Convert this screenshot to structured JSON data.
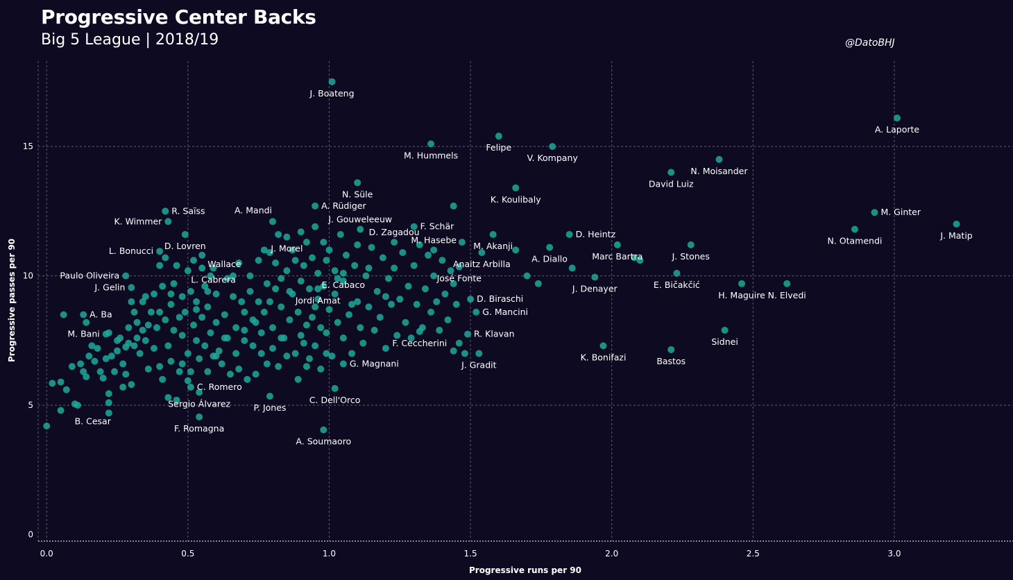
{
  "chart_data": {
    "type": "scatter",
    "title": "Progressive Center Backs",
    "subtitle": "Big 5 League | 2018/19",
    "credit": "@DatoBHJ",
    "xlabel": "Progressive runs per 90",
    "ylabel": "Progressive passes per 90",
    "xlim": [
      -0.03,
      3.42
    ],
    "ylim": [
      -0.25,
      18.3
    ],
    "xticks": [
      0.0,
      0.5,
      1.0,
      1.5,
      2.0,
      2.5,
      3.0
    ],
    "xtick_labels": [
      "0.0",
      "0.5",
      "1.0",
      "1.5",
      "2.0",
      "2.5",
      "3.0"
    ],
    "yticks": [
      0,
      5,
      10,
      15
    ],
    "ytick_labels": [
      "0",
      "5",
      "10",
      "15"
    ],
    "grid": true,
    "colors": {
      "background": "#0d0a22",
      "point": "#1fa898",
      "text": "#ffffff",
      "grid": "#9a97a8"
    },
    "labeled_points": [
      {
        "name": "J. Boateng",
        "x": 1.01,
        "y": 17.5,
        "label_pos": "below"
      },
      {
        "name": "A. Laporte",
        "x": 3.01,
        "y": 16.1,
        "label_pos": "below"
      },
      {
        "name": "M. Hummels",
        "x": 1.36,
        "y": 15.1,
        "label_pos": "below"
      },
      {
        "name": "Felipe",
        "x": 1.6,
        "y": 15.4,
        "label_pos": "below"
      },
      {
        "name": "V. Kompany",
        "x": 1.79,
        "y": 15.0,
        "label_pos": "below"
      },
      {
        "name": "N. Moisander",
        "x": 2.38,
        "y": 14.5,
        "label_pos": "below"
      },
      {
        "name": "David Luiz",
        "x": 2.21,
        "y": 14.0,
        "label_pos": "below"
      },
      {
        "name": "N. Süle",
        "x": 1.1,
        "y": 13.6,
        "label_pos": "below"
      },
      {
        "name": "K. Koulibaly",
        "x": 1.66,
        "y": 13.4,
        "label_pos": "below"
      },
      {
        "name": "A. Rüdiger",
        "x": 0.95,
        "y": 12.7,
        "label_pos": "right"
      },
      {
        "name": "R. Saïss",
        "x": 0.42,
        "y": 12.5,
        "label_pos": "right"
      },
      {
        "name": "M. Ginter",
        "x": 2.93,
        "y": 12.45,
        "label_pos": "right"
      },
      {
        "name": "A. Mandi",
        "x": 0.8,
        "y": 12.1,
        "label_pos": "above-left"
      },
      {
        "name": "J. Gouweleeuw",
        "x": 1.11,
        "y": 11.8,
        "label_pos": "above"
      },
      {
        "name": "K. Wimmer",
        "x": 0.43,
        "y": 12.1,
        "label_pos": "left"
      },
      {
        "name": "J. Matip",
        "x": 3.22,
        "y": 12.0,
        "label_pos": "below"
      },
      {
        "name": "F. Schär",
        "x": 1.3,
        "y": 11.9,
        "label_pos": "right"
      },
      {
        "name": "N. Otamendi",
        "x": 2.86,
        "y": 11.8,
        "label_pos": "below"
      },
      {
        "name": "D. Heintz",
        "x": 1.85,
        "y": 11.6,
        "label_pos": "right"
      },
      {
        "name": "D. Lovren",
        "x": 0.49,
        "y": 11.6,
        "label_pos": "below"
      },
      {
        "name": "J. Morel",
        "x": 0.85,
        "y": 11.5,
        "label_pos": "below"
      },
      {
        "name": "D. Zagadou",
        "x": 1.23,
        "y": 11.3,
        "label_pos": "above"
      },
      {
        "name": "M. Hasebe",
        "x": 1.37,
        "y": 11.0,
        "label_pos": "above"
      },
      {
        "name": "M. Akanji",
        "x": 1.58,
        "y": 11.6,
        "label_pos": "below"
      },
      {
        "name": "L. Bonucci",
        "x": 0.4,
        "y": 10.95,
        "label_pos": "left"
      },
      {
        "name": "Wallace",
        "x": 0.55,
        "y": 10.8,
        "label_pos": "right-below"
      },
      {
        "name": "A. Diallo",
        "x": 1.78,
        "y": 11.1,
        "label_pos": "below"
      },
      {
        "name": "Marc Bartra",
        "x": 2.02,
        "y": 11.2,
        "label_pos": "below"
      },
      {
        "name": "J. Stones",
        "x": 2.28,
        "y": 11.2,
        "label_pos": "below"
      },
      {
        "name": "Anaitz Arbilla",
        "x": 1.54,
        "y": 10.9,
        "label_pos": "below"
      },
      {
        "name": "Paulo Oliveira",
        "x": 0.28,
        "y": 10.0,
        "label_pos": "left"
      },
      {
        "name": "L. Cabrera",
        "x": 0.59,
        "y": 10.3,
        "label_pos": "below"
      },
      {
        "name": "José Fonte",
        "x": 1.46,
        "y": 10.35,
        "label_pos": "below"
      },
      {
        "name": "E. Cabaco",
        "x": 1.05,
        "y": 10.1,
        "label_pos": "below"
      },
      {
        "name": "J. Denayer",
        "x": 1.94,
        "y": 9.95,
        "label_pos": "below"
      },
      {
        "name": "E. Bičakčić",
        "x": 2.23,
        "y": 10.1,
        "label_pos": "below"
      },
      {
        "name": "J. Gelin",
        "x": 0.3,
        "y": 9.55,
        "label_pos": "left"
      },
      {
        "name": "Jordi Amat",
        "x": 0.96,
        "y": 9.5,
        "label_pos": "below"
      },
      {
        "name": "H. Maguire",
        "x": 2.46,
        "y": 9.7,
        "label_pos": "below"
      },
      {
        "name": "N. Elvedi",
        "x": 2.62,
        "y": 9.7,
        "label_pos": "below"
      },
      {
        "name": "D. Biraschi",
        "x": 1.5,
        "y": 9.1,
        "label_pos": "right"
      },
      {
        "name": "G. Mancini",
        "x": 1.52,
        "y": 8.6,
        "label_pos": "right"
      },
      {
        "name": "A. Ba",
        "x": 0.13,
        "y": 8.5,
        "label_pos": "right"
      },
      {
        "name": "Sidnei",
        "x": 2.4,
        "y": 7.9,
        "label_pos": "below"
      },
      {
        "name": "M. Bani",
        "x": 0.21,
        "y": 7.75,
        "label_pos": "left"
      },
      {
        "name": "R. Klavan",
        "x": 1.49,
        "y": 7.75,
        "label_pos": "right"
      },
      {
        "name": "F. Ceccherini",
        "x": 1.32,
        "y": 7.85,
        "label_pos": "below"
      },
      {
        "name": "K. Bonifazi",
        "x": 1.97,
        "y": 7.3,
        "label_pos": "below"
      },
      {
        "name": "Bastos",
        "x": 2.21,
        "y": 7.15,
        "label_pos": "below"
      },
      {
        "name": "J. Gradit",
        "x": 1.53,
        "y": 7.0,
        "label_pos": "below"
      },
      {
        "name": "G. Magnani",
        "x": 1.05,
        "y": 6.6,
        "label_pos": "right"
      },
      {
        "name": "C. Romero",
        "x": 0.51,
        "y": 5.7,
        "label_pos": "right"
      },
      {
        "name": "C. Dell'Orco",
        "x": 1.02,
        "y": 5.65,
        "label_pos": "below"
      },
      {
        "name": "Sergio Álvarez",
        "x": 0.54,
        "y": 5.5,
        "label_pos": "below"
      },
      {
        "name": "P. Jones",
        "x": 0.79,
        "y": 5.35,
        "label_pos": "below"
      },
      {
        "name": "B. Cesar",
        "x": 0.05,
        "y": 4.8,
        "label_pos": "below-right"
      },
      {
        "name": "F. Romagna",
        "x": 0.54,
        "y": 4.55,
        "label_pos": "below"
      },
      {
        "name": "A. Soumaoro",
        "x": 0.98,
        "y": 4.05,
        "label_pos": "below"
      }
    ],
    "points": [
      [
        0.0,
        4.2
      ],
      [
        0.02,
        5.85
      ],
      [
        0.05,
        5.9
      ],
      [
        0.07,
        5.6
      ],
      [
        0.09,
        6.5
      ],
      [
        0.1,
        5.05
      ],
      [
        0.11,
        5.0
      ],
      [
        0.12,
        6.6
      ],
      [
        0.13,
        6.3
      ],
      [
        0.14,
        6.1
      ],
      [
        0.15,
        6.9
      ],
      [
        0.16,
        7.3
      ],
      [
        0.17,
        6.7
      ],
      [
        0.18,
        7.2
      ],
      [
        0.19,
        6.3
      ],
      [
        0.2,
        6.05
      ],
      [
        0.21,
        6.8
      ],
      [
        0.22,
        5.45
      ],
      [
        0.22,
        5.1
      ],
      [
        0.22,
        4.7
      ],
      [
        0.23,
        6.9
      ],
      [
        0.24,
        6.3
      ],
      [
        0.25,
        7.1
      ],
      [
        0.26,
        7.6
      ],
      [
        0.27,
        6.6
      ],
      [
        0.27,
        5.7
      ],
      [
        0.28,
        6.2
      ],
      [
        0.28,
        7.25
      ],
      [
        0.29,
        7.4
      ],
      [
        0.29,
        8.0
      ],
      [
        0.3,
        5.8
      ],
      [
        0.31,
        8.6
      ],
      [
        0.31,
        7.3
      ],
      [
        0.32,
        8.2
      ],
      [
        0.33,
        7.0
      ],
      [
        0.34,
        9.0
      ],
      [
        0.34,
        7.9
      ],
      [
        0.35,
        7.5
      ],
      [
        0.36,
        8.1
      ],
      [
        0.36,
        6.4
      ],
      [
        0.37,
        8.6
      ],
      [
        0.38,
        9.3
      ],
      [
        0.38,
        7.2
      ],
      [
        0.39,
        8.0
      ],
      [
        0.4,
        6.5
      ],
      [
        0.4,
        8.6
      ],
      [
        0.41,
        9.6
      ],
      [
        0.41,
        6.0
      ],
      [
        0.42,
        8.3
      ],
      [
        0.42,
        10.7
      ],
      [
        0.43,
        7.3
      ],
      [
        0.43,
        5.3
      ],
      [
        0.44,
        8.9
      ],
      [
        0.44,
        6.7
      ],
      [
        0.45,
        9.7
      ],
      [
        0.45,
        7.9
      ],
      [
        0.46,
        10.4
      ],
      [
        0.46,
        5.2
      ],
      [
        0.47,
        8.4
      ],
      [
        0.47,
        6.3
      ],
      [
        0.48,
        9.2
      ],
      [
        0.48,
        7.7
      ],
      [
        0.49,
        8.6
      ],
      [
        0.5,
        10.2
      ],
      [
        0.5,
        7.0
      ],
      [
        0.5,
        5.95
      ],
      [
        0.51,
        9.4
      ],
      [
        0.51,
        6.3
      ],
      [
        0.52,
        8.1
      ],
      [
        0.52,
        10.6
      ],
      [
        0.53,
        7.5
      ],
      [
        0.53,
        9.0
      ],
      [
        0.54,
        6.8
      ],
      [
        0.55,
        8.4
      ],
      [
        0.55,
        10.3
      ],
      [
        0.56,
        7.3
      ],
      [
        0.56,
        9.6
      ],
      [
        0.57,
        6.3
      ],
      [
        0.57,
        8.8
      ],
      [
        0.58,
        7.8
      ],
      [
        0.58,
        10.0
      ],
      [
        0.59,
        6.9
      ],
      [
        0.6,
        8.2
      ],
      [
        0.6,
        9.3
      ],
      [
        0.61,
        7.1
      ],
      [
        0.62,
        6.6
      ],
      [
        0.63,
        8.5
      ],
      [
        0.64,
        9.9
      ],
      [
        0.64,
        7.6
      ],
      [
        0.65,
        6.2
      ],
      [
        0.66,
        9.2
      ],
      [
        0.67,
        7.0
      ],
      [
        0.67,
        8.0
      ],
      [
        0.68,
        10.5
      ],
      [
        0.68,
        6.4
      ],
      [
        0.69,
        9.0
      ],
      [
        0.7,
        7.5
      ],
      [
        0.7,
        8.6
      ],
      [
        0.71,
        6.0
      ],
      [
        0.72,
        10.0
      ],
      [
        0.72,
        9.4
      ],
      [
        0.73,
        7.3
      ],
      [
        0.73,
        8.3
      ],
      [
        0.74,
        6.2
      ],
      [
        0.75,
        10.6
      ],
      [
        0.75,
        9.0
      ],
      [
        0.76,
        7.8
      ],
      [
        0.77,
        8.6
      ],
      [
        0.77,
        11.0
      ],
      [
        0.78,
        6.6
      ],
      [
        0.78,
        9.7
      ],
      [
        0.79,
        10.9
      ],
      [
        0.8,
        8.0
      ],
      [
        0.8,
        7.2
      ],
      [
        0.81,
        9.5
      ],
      [
        0.81,
        10.5
      ],
      [
        0.82,
        6.5
      ],
      [
        0.82,
        11.6
      ],
      [
        0.83,
        8.8
      ],
      [
        0.83,
        9.9
      ],
      [
        0.84,
        7.6
      ],
      [
        0.85,
        10.2
      ],
      [
        0.85,
        6.9
      ],
      [
        0.86,
        8.3
      ],
      [
        0.87,
        11.0
      ],
      [
        0.87,
        9.3
      ],
      [
        0.88,
        7.0
      ],
      [
        0.88,
        10.6
      ],
      [
        0.89,
        6.0
      ],
      [
        0.89,
        8.6
      ],
      [
        0.9,
        11.7
      ],
      [
        0.9,
        9.8
      ],
      [
        0.91,
        7.4
      ],
      [
        0.91,
        10.4
      ],
      [
        0.92,
        8.1
      ],
      [
        0.92,
        11.3
      ],
      [
        0.93,
        9.5
      ],
      [
        0.93,
        6.8
      ],
      [
        0.94,
        10.7
      ],
      [
        0.94,
        8.4
      ],
      [
        0.95,
        7.3
      ],
      [
        0.95,
        11.9
      ],
      [
        0.96,
        9.1
      ],
      [
        0.96,
        10.1
      ],
      [
        0.97,
        6.4
      ],
      [
        0.97,
        8.0
      ],
      [
        0.98,
        11.3
      ],
      [
        0.98,
        9.6
      ],
      [
        0.99,
        7.8
      ],
      [
        0.99,
        10.6
      ],
      [
        1.0,
        8.7
      ],
      [
        1.0,
        11.0
      ],
      [
        1.01,
        6.9
      ],
      [
        1.02,
        9.3
      ],
      [
        1.02,
        10.2
      ],
      [
        1.03,
        8.2
      ],
      [
        1.04,
        11.6
      ],
      [
        1.05,
        7.6
      ],
      [
        1.05,
        9.8
      ],
      [
        1.06,
        10.8
      ],
      [
        1.07,
        8.5
      ],
      [
        1.08,
        7.0
      ],
      [
        1.09,
        10.4
      ],
      [
        1.1,
        9.0
      ],
      [
        1.1,
        11.2
      ],
      [
        1.11,
        8.0
      ],
      [
        1.12,
        7.4
      ],
      [
        1.13,
        10.0
      ],
      [
        1.14,
        8.8
      ],
      [
        1.15,
        11.1
      ],
      [
        1.16,
        7.9
      ],
      [
        1.17,
        9.4
      ],
      [
        1.18,
        8.4
      ],
      [
        1.19,
        10.7
      ],
      [
        1.2,
        7.2
      ],
      [
        1.21,
        9.9
      ],
      [
        1.22,
        8.9
      ],
      [
        1.23,
        10.3
      ],
      [
        1.24,
        7.7
      ],
      [
        1.25,
        9.1
      ],
      [
        1.26,
        10.9
      ],
      [
        1.27,
        8.2
      ],
      [
        1.28,
        9.6
      ],
      [
        1.29,
        7.6
      ],
      [
        1.3,
        10.4
      ],
      [
        1.31,
        8.9
      ],
      [
        1.32,
        11.2
      ],
      [
        1.33,
        8.0
      ],
      [
        1.34,
        9.5
      ],
      [
        1.35,
        10.8
      ],
      [
        1.36,
        8.6
      ],
      [
        1.37,
        10.0
      ],
      [
        1.38,
        9.0
      ],
      [
        1.39,
        7.9
      ],
      [
        1.4,
        10.6
      ],
      [
        1.41,
        9.3
      ],
      [
        1.42,
        8.3
      ],
      [
        1.43,
        10.2
      ],
      [
        1.44,
        9.7
      ],
      [
        1.44,
        7.1
      ],
      [
        1.45,
        8.9
      ],
      [
        1.46,
        7.4
      ],
      [
        1.47,
        11.3
      ],
      [
        1.48,
        7.0
      ],
      [
        1.44,
        12.7
      ],
      [
        1.66,
        11.0
      ],
      [
        1.7,
        10.0
      ],
      [
        1.74,
        9.7
      ],
      [
        1.86,
        10.3
      ],
      [
        2.08,
        10.7
      ],
      [
        2.1,
        10.6
      ],
      [
        0.06,
        8.5
      ],
      [
        0.14,
        8.2
      ],
      [
        0.22,
        7.8
      ],
      [
        0.25,
        7.5
      ],
      [
        0.3,
        9.0
      ],
      [
        0.32,
        7.6
      ],
      [
        0.35,
        9.2
      ],
      [
        0.4,
        10.4
      ],
      [
        0.44,
        9.3
      ],
      [
        0.48,
        6.6
      ],
      [
        0.53,
        8.7
      ],
      [
        0.57,
        9.4
      ],
      [
        0.6,
        6.9
      ],
      [
        0.63,
        7.6
      ],
      [
        0.66,
        10.0
      ],
      [
        0.7,
        7.9
      ],
      [
        0.74,
        8.2
      ],
      [
        0.76,
        7.0
      ],
      [
        0.79,
        9.0
      ],
      [
        0.83,
        7.6
      ],
      [
        0.86,
        9.4
      ],
      [
        0.9,
        7.7
      ],
      [
        0.92,
        6.5
      ],
      [
        0.95,
        8.8
      ],
      [
        0.99,
        7.0
      ],
      [
        1.03,
        9.9
      ],
      [
        1.08,
        8.9
      ],
      [
        1.14,
        10.3
      ],
      [
        1.2,
        9.2
      ]
    ]
  }
}
